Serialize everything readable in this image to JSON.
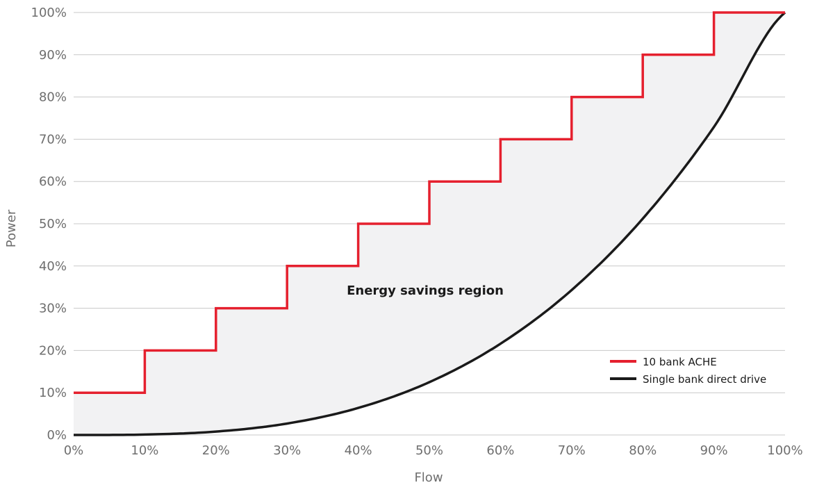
{
  "chart_data": {
    "type": "line",
    "xlabel": "Flow",
    "ylabel": "Power",
    "xlim": [
      0,
      100
    ],
    "ylim": [
      0,
      100
    ],
    "x_ticks": [
      "0%",
      "10%",
      "20%",
      "30%",
      "40%",
      "50%",
      "60%",
      "70%",
      "80%",
      "90%",
      "100%"
    ],
    "y_ticks": [
      "0%",
      "10%",
      "20%",
      "30%",
      "40%",
      "50%",
      "60%",
      "70%",
      "80%",
      "90%",
      "100%"
    ],
    "grid": "horizontal",
    "legend_position": "bottom-right",
    "annotation": "Energy savings region",
    "series": [
      {
        "name": "10 bank ACHE",
        "color": "#e5202e",
        "style": "step",
        "x": [
          0,
          10,
          20,
          30,
          40,
          50,
          60,
          70,
          80,
          90,
          100
        ],
        "y": [
          10,
          20,
          30,
          40,
          50,
          60,
          70,
          80,
          90,
          100,
          100
        ]
      },
      {
        "name": "Single bank direct drive",
        "color": "#1a1a1a",
        "style": "curve",
        "x": [
          0,
          10,
          20,
          30,
          40,
          50,
          60,
          70,
          80,
          90,
          100
        ],
        "y": [
          0,
          0.1,
          0.8,
          2.7,
          6.4,
          12.5,
          21.6,
          34.3,
          51.2,
          72.9,
          100
        ]
      }
    ],
    "fill_color": "#f2f2f3"
  }
}
